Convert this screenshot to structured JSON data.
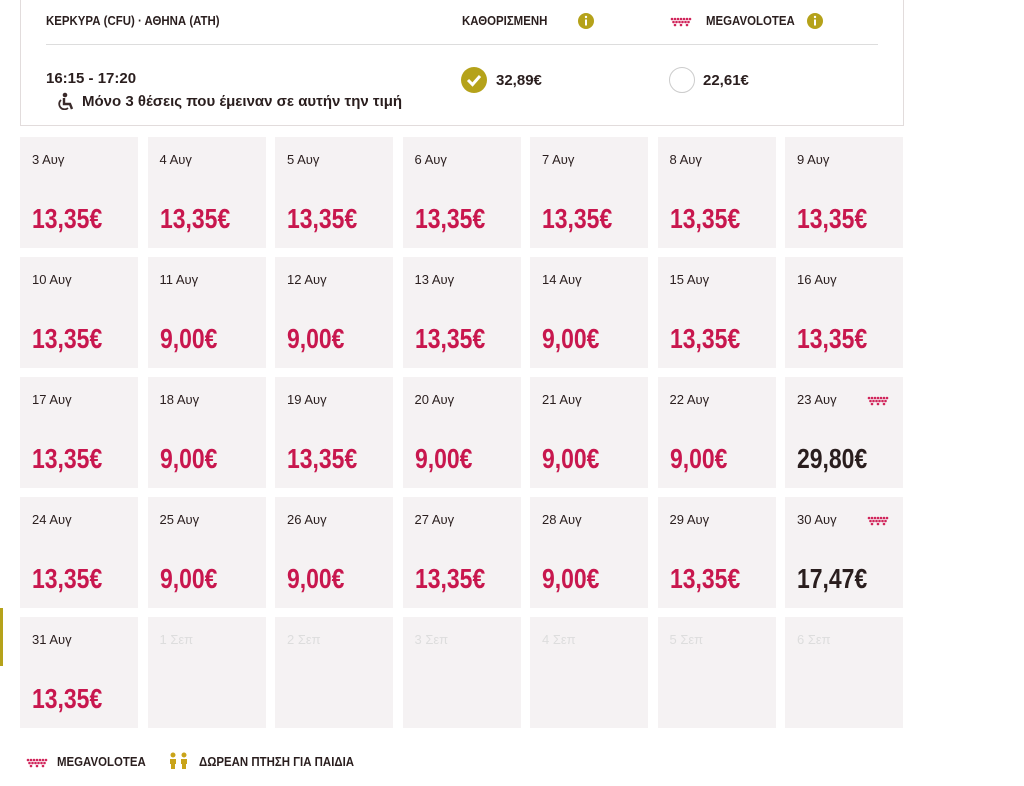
{
  "header": {
    "route": "ΚΕΡΚΥΡΑ (CFU) · ΑΘΗΝΑ (ATH)",
    "fare": "ΚΑΘΟΡΙΣΜΕΝΗ",
    "airline": "MEGAVOLOTEA"
  },
  "flight": {
    "time": "16:15 - 17:20",
    "seats_note": "Μόνο 3 θέσεις που έμειναν σε αυτήν την τιμή",
    "fare_price": "32,89€",
    "airline_price": "22,61€",
    "selected": "fare"
  },
  "calendar": [
    {
      "date": "3 Αυγ",
      "price": "13,35€"
    },
    {
      "date": "4 Αυγ",
      "price": "13,35€"
    },
    {
      "date": "5 Αυγ",
      "price": "13,35€"
    },
    {
      "date": "6 Αυγ",
      "price": "13,35€"
    },
    {
      "date": "7 Αυγ",
      "price": "13,35€"
    },
    {
      "date": "8 Αυγ",
      "price": "13,35€"
    },
    {
      "date": "9 Αυγ",
      "price": "13,35€"
    },
    {
      "date": "10 Αυγ",
      "price": "13,35€"
    },
    {
      "date": "11 Αυγ",
      "price": "9,00€"
    },
    {
      "date": "12 Αυγ",
      "price": "9,00€"
    },
    {
      "date": "13 Αυγ",
      "price": "13,35€"
    },
    {
      "date": "14 Αυγ",
      "price": "9,00€"
    },
    {
      "date": "15 Αυγ",
      "price": "13,35€"
    },
    {
      "date": "16 Αυγ",
      "price": "13,35€"
    },
    {
      "date": "17 Αυγ",
      "price": "13,35€"
    },
    {
      "date": "18 Αυγ",
      "price": "9,00€"
    },
    {
      "date": "19 Αυγ",
      "price": "13,35€"
    },
    {
      "date": "20 Αυγ",
      "price": "9,00€"
    },
    {
      "date": "21 Αυγ",
      "price": "9,00€"
    },
    {
      "date": "22 Αυγ",
      "price": "9,00€"
    },
    {
      "date": "23 Αυγ",
      "price": "29,80€",
      "megavolotea": true
    },
    {
      "date": "24 Αυγ",
      "price": "13,35€"
    },
    {
      "date": "25 Αυγ",
      "price": "9,00€"
    },
    {
      "date": "26 Αυγ",
      "price": "9,00€"
    },
    {
      "date": "27 Αυγ",
      "price": "13,35€"
    },
    {
      "date": "28 Αυγ",
      "price": "9,00€"
    },
    {
      "date": "29 Αυγ",
      "price": "13,35€"
    },
    {
      "date": "30 Αυγ",
      "price": "17,47€",
      "megavolotea": true
    },
    {
      "date": "31 Αυγ",
      "price": "13,35€"
    },
    {
      "date": "1 Σεπ"
    },
    {
      "date": "2 Σεπ"
    },
    {
      "date": "3 Σεπ"
    },
    {
      "date": "4 Σεπ"
    },
    {
      "date": "5 Σεπ"
    },
    {
      "date": "6 Σεπ"
    }
  ],
  "legend": {
    "airline": "MEGAVOLOTEA",
    "kids": "ΔΩΡΕΑΝ ΠΤΗΣΗ ΓΙΑ ΠΑΙΔΙΑ"
  }
}
